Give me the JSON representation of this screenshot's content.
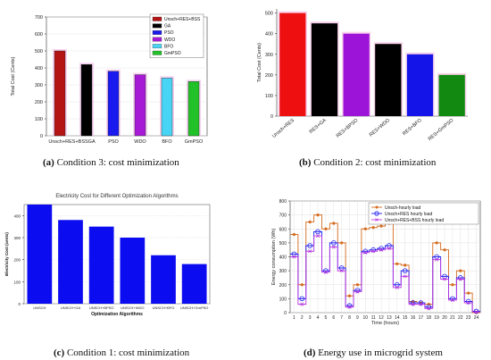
{
  "captions": {
    "a": {
      "label": "(a)",
      "text": " Condition 3: cost minimization"
    },
    "b": {
      "label": "(b)",
      "text": " Condition 2: cost minimization"
    },
    "c": {
      "label": "(c)",
      "text": " Condition 1: cost minimization"
    },
    "d": {
      "label": "(d)",
      "text": " Energy use in microgrid system"
    }
  },
  "chart_data": [
    {
      "type": "bar",
      "panel": "a",
      "categories": [
        "Unsch+RES+BSS",
        "GA",
        "PSO",
        "WDO",
        "BFO",
        "GmPSO"
      ],
      "tick_labels": [
        "Unsch+RES+BSSGA",
        "",
        "PSO",
        "WDO",
        "BFO",
        "GmPSO"
      ],
      "values": [
        500,
        420,
        380,
        360,
        340,
        320
      ],
      "colors": [
        "#b41414",
        "#000000",
        "#1a1aee",
        "#a61ad6",
        "#48d4f4",
        "#22c12a"
      ],
      "legend": [
        "Unsch+RES+BSS",
        "GA",
        "PSO",
        "WDO",
        "BFO",
        "GmPSO"
      ],
      "legend_position": "top-right",
      "title": "",
      "xlabel": "",
      "ylabel": "Total Cost (Cents)",
      "ylim": [
        0,
        700
      ],
      "yticks": [
        0,
        100,
        200,
        300,
        400,
        500,
        600,
        700
      ]
    },
    {
      "type": "bar",
      "panel": "b",
      "categories": [
        "Unsch+RES",
        "RES+GA",
        "RES+BPSO",
        "RES+WDO",
        "RES+BFO",
        "RES+GmPSO"
      ],
      "values": [
        500,
        450,
        400,
        350,
        300,
        200
      ],
      "colors": [
        "#ee1010",
        "#000000",
        "#9c14d8",
        "#000000",
        "#1414e8",
        "#128a12"
      ],
      "title": "",
      "xlabel": "",
      "ylabel": "Total Cost (Cents)",
      "ylim": [
        0,
        520
      ],
      "yticks": [
        0,
        100,
        200,
        300,
        400,
        500
      ]
    },
    {
      "type": "bar",
      "panel": "c",
      "categories": [
        "UNSCH",
        "UNSCH+GA",
        "UNSCH+BPSO",
        "UNSCH+WDO",
        "UNSCH+BFO",
        "UNSCH+GmPSO"
      ],
      "values": [
        450,
        380,
        350,
        300,
        220,
        180
      ],
      "colors": [
        "#0c0cf0",
        "#0c0cf0",
        "#0c0cf0",
        "#0c0cf0",
        "#0c0cf0",
        "#0c0cf0"
      ],
      "title": "Electricity Cost for Different Optimization Algorithms",
      "xlabel": "Optimization Algorithms",
      "ylabel": "Electricity Cost (cents)",
      "ylim": [
        0,
        450
      ],
      "yticks": [
        0,
        100,
        200,
        300,
        400
      ]
    },
    {
      "type": "line",
      "panel": "d",
      "x": [
        1,
        2,
        3,
        4,
        5,
        6,
        7,
        8,
        9,
        10,
        11,
        12,
        13,
        14,
        15,
        16,
        17,
        18,
        19,
        20,
        21,
        22,
        23,
        24
      ],
      "series": [
        {
          "name": "Unsch-hourly load",
          "color": "#d46a1e",
          "values": [
            560,
            200,
            650,
            700,
            600,
            640,
            500,
            120,
            200,
            600,
            610,
            620,
            640,
            350,
            340,
            80,
            70,
            60,
            500,
            450,
            200,
            300,
            140,
            0
          ]
        },
        {
          "name": "Unsch+RES hourly load",
          "color": "#1e1ef0",
          "values": [
            420,
            100,
            480,
            580,
            300,
            500,
            320,
            50,
            160,
            440,
            450,
            460,
            480,
            200,
            300,
            70,
            70,
            40,
            400,
            260,
            100,
            250,
            80,
            10
          ]
        },
        {
          "name": "Unsch+RES+BSS hourly load",
          "color": "#b836e0",
          "values": [
            400,
            60,
            440,
            550,
            290,
            470,
            300,
            40,
            150,
            430,
            440,
            450,
            460,
            180,
            260,
            60,
            60,
            30,
            380,
            240,
            90,
            240,
            70,
            5
          ]
        }
      ],
      "legend_position": "top-right",
      "title": "",
      "xlabel": "Time (hours)",
      "ylabel": "Energy consumption (Wh)",
      "xlim": [
        0.5,
        24.5
      ],
      "ylim": [
        0,
        800
      ],
      "yticks": [
        0,
        100,
        200,
        300,
        400,
        500,
        600,
        700,
        800
      ]
    }
  ]
}
